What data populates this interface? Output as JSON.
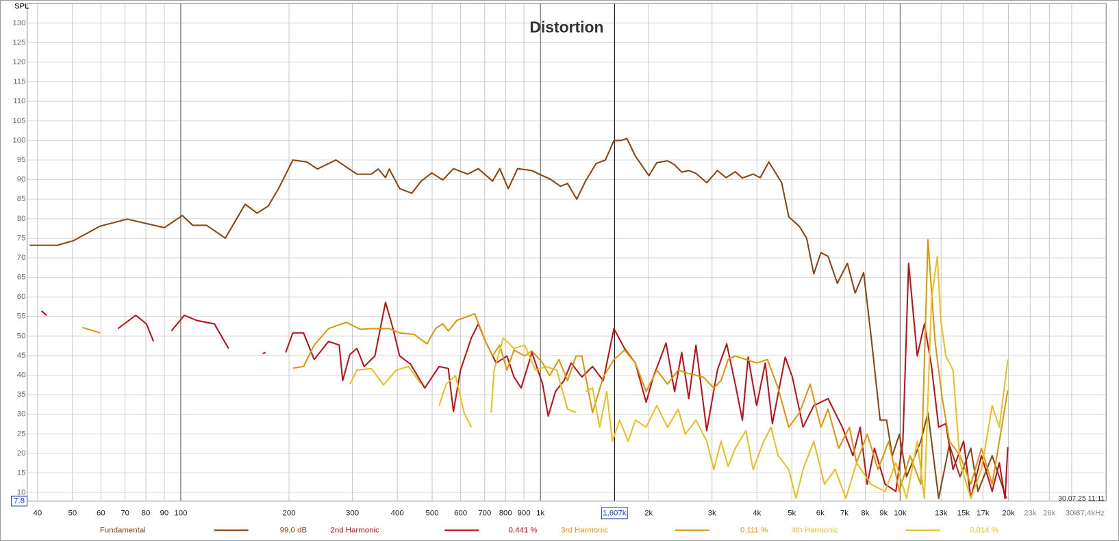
{
  "chart_data": {
    "type": "line",
    "title": "Distortion",
    "y_axis_label": "SPL",
    "timestamp": "30.07.25 11:11",
    "log_x": true,
    "grid": true,
    "legend_position": "bottom",
    "xlim": [
      37.4,
      37400
    ],
    "ylim": [
      7.8,
      135
    ],
    "ylim_label": "7.8",
    "cursor_x": {
      "value": 1607,
      "label": "1,607k"
    },
    "xticks": [
      40,
      50,
      60,
      70,
      80,
      90,
      100,
      200,
      300,
      400,
      500,
      600,
      700,
      800,
      900,
      {
        "value": 1000,
        "label": "1k"
      },
      {
        "value": 2000,
        "label": "2k"
      },
      {
        "value": 3000,
        "label": "3k"
      },
      {
        "value": 4000,
        "label": "4k"
      },
      {
        "value": 5000,
        "label": "5k"
      },
      {
        "value": 6000,
        "label": "6k"
      },
      {
        "value": 7000,
        "label": "7k"
      },
      {
        "value": 8000,
        "label": "8k"
      },
      {
        "value": 9000,
        "label": "9k"
      },
      {
        "value": 10000,
        "label": "10k"
      },
      {
        "value": 13000,
        "label": "13k"
      },
      {
        "value": 15000,
        "label": "15k"
      },
      {
        "value": 17000,
        "label": "17k"
      },
      {
        "value": 20000,
        "label": "20k"
      },
      {
        "value": 23000,
        "label": "23k"
      },
      {
        "value": 26000,
        "label": "26k"
      },
      {
        "value": 30000,
        "label": "30k"
      },
      {
        "value": 37400,
        "label": "37,4kHz"
      }
    ],
    "yticks": [
      10,
      15,
      20,
      25,
      30,
      35,
      40,
      45,
      50,
      55,
      60,
      65,
      70,
      75,
      80,
      85,
      90,
      95,
      100,
      105,
      110,
      115,
      120,
      125,
      130
    ],
    "series": [
      {
        "name": "Fundamental",
        "legend_value": "99,0 dB",
        "color": "#8c4414",
        "x": [
          38,
          45.4,
          50.4,
          59.7,
          71,
          90,
          101,
          108,
          118,
          133,
          151,
          163,
          175,
          187,
          205,
          224,
          240,
          270,
          309,
          339,
          354,
          371,
          380,
          406,
          439,
          466,
          499,
          535,
          573,
          628,
          672,
          736,
          771,
          814,
          864,
          947,
          991,
          1061,
          1137,
          1190,
          1262,
          1334,
          1428,
          1516,
          1601,
          1676,
          1739,
          1836,
          2003,
          2106,
          2256,
          2361,
          2471,
          2586,
          2707,
          2900,
          3105,
          3281,
          3481,
          3644,
          3903,
          4085,
          4314,
          4684,
          4903,
          5252,
          5497,
          5754,
          6024,
          6304,
          6690,
          7134,
          7499,
          7919,
          8293,
          8800,
          9170,
          9511,
          9955,
          10420,
          11418,
          11950,
          12800,
          13710,
          14680,
          15720,
          16460,
          18030,
          19750
        ],
        "values": [
          73.2,
          73.2,
          74.4,
          78.1,
          79.9,
          77.7,
          80.8,
          78.3,
          78.3,
          75,
          83.7,
          81.4,
          83.2,
          87.7,
          95,
          94.5,
          92.7,
          95,
          91.4,
          91.4,
          92.7,
          90.5,
          92.7,
          87.7,
          86.5,
          89.6,
          91.7,
          89.9,
          92.8,
          91.4,
          92.8,
          89.6,
          92.8,
          87.7,
          92.8,
          92.3,
          91.4,
          90.2,
          88.3,
          89,
          85,
          89.6,
          94.1,
          95,
          100,
          100,
          100.5,
          96,
          91,
          94.3,
          94.8,
          93.8,
          91.9,
          92.3,
          91.6,
          89.2,
          92.3,
          90.5,
          92,
          90.4,
          91.4,
          90.5,
          94.5,
          89.2,
          80.5,
          78,
          75,
          65.9,
          71.3,
          70.4,
          63.5,
          68.6,
          61,
          66.2,
          50.4,
          28.5,
          28.5,
          19.4,
          24.9,
          14,
          23.1,
          30.4,
          8.5,
          22.2,
          14,
          21.3,
          10.3,
          19.4,
          8.5
        ]
      },
      {
        "name": "2nd Harmonic",
        "legend_value": "0,441 %",
        "color": "#c0101a",
        "x": [
          41,
          42.4,
          50,
          66.9,
          75,
          80.3,
          84,
          88,
          94.2,
          102.3,
          110.6,
          124,
          135.8,
          150,
          169,
          172,
          185,
          195.8,
          205,
          219.4,
          235,
          257.5,
          275.8,
          282,
          295.3,
          309,
          323.6,
          346.6,
          371,
          388.4,
          406,
          435.4,
          477,
          522.8,
          554.6,
          573,
          599.6,
          642.3,
          672,
          703.6,
          753.5,
          807,
          844.5,
          884,
          947,
          1014,
          1051,
          1101,
          1163,
          1217,
          1304,
          1396,
          1495,
          1601,
          1714,
          1836,
          1967,
          2059,
          2235,
          2361,
          2471,
          2586,
          2707,
          2900,
          3105,
          3296,
          3481,
          3644,
          3779,
          3993,
          4217,
          4415,
          4793,
          5017,
          5374,
          5754,
          6304,
          6907,
          7396,
          7743,
          8102,
          8483,
          9085,
          9730,
          10180,
          10560,
          11160,
          11680,
          12230,
          12800,
          13400,
          14030,
          15020,
          15720,
          16840,
          18030,
          18870,
          19580,
          19930
        ],
        "values": [
          56.4,
          55.3,
          null,
          51.9,
          55.3,
          53.1,
          48.6,
          null,
          51.3,
          55.3,
          54,
          53.1,
          46.8,
          null,
          45.5,
          45.8,
          null,
          45.8,
          50.8,
          50.8,
          44,
          48.6,
          47.7,
          38.6,
          45.3,
          46.8,
          42.2,
          44.9,
          58.6,
          52.2,
          44.9,
          42.8,
          36.7,
          42.2,
          41.7,
          30.7,
          41.3,
          49.5,
          53.1,
          48.6,
          43.1,
          44.9,
          39.5,
          36.7,
          45.8,
          37.7,
          29.5,
          35.8,
          38.6,
          43.1,
          39.5,
          42.2,
          38.6,
          51.9,
          46.8,
          43.1,
          33.1,
          39.5,
          48.2,
          35.8,
          45.8,
          34,
          47.7,
          25.8,
          41.3,
          48,
          37.7,
          28.5,
          44.6,
          32.2,
          43.1,
          27.6,
          44.6,
          39.5,
          26.7,
          32.2,
          34,
          26.7,
          19.4,
          26.7,
          12.1,
          21.3,
          12.1,
          10.3,
          23.1,
          68.6,
          44.9,
          53.1,
          42.2,
          26.7,
          27.6,
          15.9,
          23.1,
          8.5,
          19.4,
          10.3,
          17.6,
          8.5,
          21.6
        ]
      },
      {
        "name": "3rd Harmonic",
        "legend_value": "0,111 %",
        "color": "#e0960c",
        "x": [
          53.3,
          59.7,
          120,
          205,
          219.4,
          235,
          257.5,
          288.6,
          316,
          339,
          380,
          406,
          445.5,
          483.6,
          510.9,
          535,
          554.6,
          586,
          657,
          703.6,
          736,
          771,
          807,
          844.5,
          904,
          947,
          1014,
          1061,
          1126,
          1190,
          1257,
          1304,
          1396,
          1495,
          1601,
          1714,
          1836,
          1967,
          2106,
          2256,
          2415,
          2586,
          2835,
          3035,
          3177,
          3325,
          3481,
          3727,
          3993,
          4276,
          4579,
          4903,
          5252,
          5623,
          6024,
          6304,
          6752,
          7229,
          7568,
          8102,
          8679,
          9297,
          9955,
          10660,
          11418,
          11950,
          12510,
          13100,
          13710,
          14680,
          15720,
          16840,
          18030,
          18870,
          19930
        ],
        "values": [
          52.2,
          50.8,
          null,
          41.8,
          42.2,
          47.7,
          51.9,
          53.5,
          51.7,
          51.9,
          51.9,
          50.8,
          50.4,
          48,
          51.9,
          53.1,
          51.3,
          54,
          55.7,
          48.6,
          44.9,
          47.7,
          41.3,
          46.4,
          44.9,
          46.2,
          43.1,
          39.9,
          44,
          38.6,
          44.9,
          44.9,
          30.4,
          39.5,
          44,
          46.4,
          43.1,
          35.8,
          41.3,
          37.7,
          41.3,
          40.4,
          39.5,
          36.7,
          38.6,
          44,
          44.9,
          44,
          43.1,
          44,
          36.7,
          26.7,
          30.4,
          37.7,
          26.7,
          31.3,
          21.3,
          26.7,
          17.6,
          24.9,
          15.9,
          23.1,
          10.3,
          19.4,
          12.1,
          74.6,
          48.6,
          34,
          23.1,
          19.4,
          12.1,
          21.3,
          12.1,
          23.1,
          36.2
        ]
      },
      {
        "name": "4th Harmonic",
        "legend_value": "0,014 %",
        "color": "#e8c020",
        "x": [
          295.3,
          309,
          339,
          366,
          397.4,
          429.5,
          466,
          495,
          522.8,
          547.2,
          580.6,
          613.5,
          642.3,
          690,
          729.5,
          743,
          788.6,
          844.5,
          904,
          968.5,
          1037,
          1110,
          1190,
          1257,
          1300,
          1334,
          1396,
          1461,
          1529,
          1586,
          1661,
          1754,
          1836,
          1967,
          2106,
          2256,
          2415,
          2528,
          2707,
          2900,
          3035,
          3177,
          3325,
          3481,
          3727,
          3903,
          4178,
          4374,
          4579,
          4903,
          5133,
          5374,
          5754,
          6163,
          6598,
          7068,
          7568,
          8293,
          9085,
          9730,
          10420,
          11160,
          11680,
          12230,
          12690,
          12980,
          13400,
          14030,
          14680,
          15720,
          16840,
          18030,
          18870,
          19930
        ],
        "values": [
          37.7,
          41.3,
          41.7,
          37.5,
          41.3,
          42.2,
          37.7,
          null,
          32.2,
          37.7,
          39.9,
          30.4,
          26.7,
          null,
          30.4,
          41.3,
          49.5,
          46.8,
          47.7,
          41.3,
          42.2,
          41.3,
          31.3,
          30.4,
          null,
          35.8,
          36.7,
          26.7,
          35.8,
          23.1,
          28.5,
          23.1,
          28.5,
          26.7,
          32.2,
          26.7,
          31.3,
          24.9,
          28.5,
          23.1,
          15.9,
          23.1,
          16.7,
          21.3,
          25.8,
          15.9,
          23.1,
          26.7,
          19.4,
          15.9,
          8.5,
          15.9,
          23.1,
          12.1,
          15.9,
          8.5,
          17.6,
          12.1,
          10.3,
          17.6,
          8.5,
          23.1,
          8.5,
          59.5,
          70.4,
          54,
          44.9,
          41.3,
          17.6,
          8.5,
          15.9,
          32.2,
          26.7,
          44
        ]
      }
    ]
  }
}
